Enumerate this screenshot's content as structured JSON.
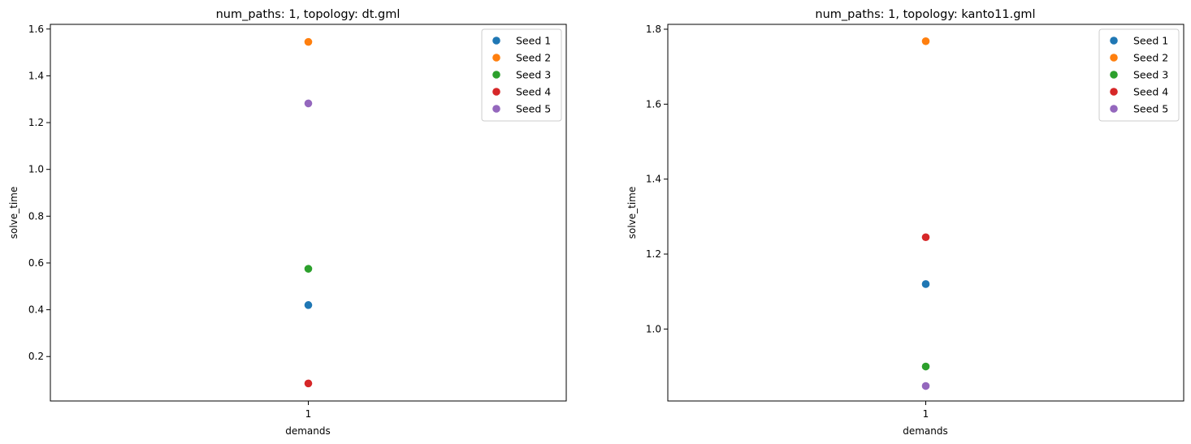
{
  "chart_data": [
    {
      "type": "scatter",
      "title": "num_paths: 1, topology: dt.gml",
      "xlabel": "demands",
      "ylabel": "solve_time",
      "categories": [
        "1"
      ],
      "ylim": [
        0.01,
        1.62
      ],
      "yticks": [
        0.2,
        0.4,
        0.6,
        0.8,
        1.0,
        1.2,
        1.4,
        1.6
      ],
      "yticklabels": [
        "0.2",
        "0.4",
        "0.6",
        "0.8",
        "1.0",
        "1.2",
        "1.4",
        "1.6"
      ],
      "legend_position": "top-right",
      "grid": false,
      "series": [
        {
          "name": "Seed 1",
          "color": "#1f77b4",
          "values": [
            0.42
          ]
        },
        {
          "name": "Seed 2",
          "color": "#ff7f0e",
          "values": [
            1.545
          ]
        },
        {
          "name": "Seed 3",
          "color": "#2ca02c",
          "values": [
            0.575
          ]
        },
        {
          "name": "Seed 4",
          "color": "#d62728",
          "values": [
            0.085
          ]
        },
        {
          "name": "Seed 5",
          "color": "#9467bd",
          "values": [
            1.282
          ]
        }
      ]
    },
    {
      "type": "scatter",
      "title": "num_paths: 1, topology: kanto11.gml",
      "xlabel": "demands",
      "ylabel": "solve_time",
      "categories": [
        "1"
      ],
      "ylim": [
        0.808,
        1.813
      ],
      "yticks": [
        1.0,
        1.2,
        1.4,
        1.6,
        1.8
      ],
      "yticklabels": [
        "1.0",
        "1.2",
        "1.4",
        "1.6",
        "1.8"
      ],
      "legend_position": "top-right",
      "grid": false,
      "series": [
        {
          "name": "Seed 1",
          "color": "#1f77b4",
          "values": [
            1.12
          ]
        },
        {
          "name": "Seed 2",
          "color": "#ff7f0e",
          "values": [
            1.768
          ]
        },
        {
          "name": "Seed 3",
          "color": "#2ca02c",
          "values": [
            0.9
          ]
        },
        {
          "name": "Seed 4",
          "color": "#d62728",
          "values": [
            1.245
          ]
        },
        {
          "name": "Seed 5",
          "color": "#9467bd",
          "values": [
            0.848
          ]
        }
      ]
    }
  ]
}
